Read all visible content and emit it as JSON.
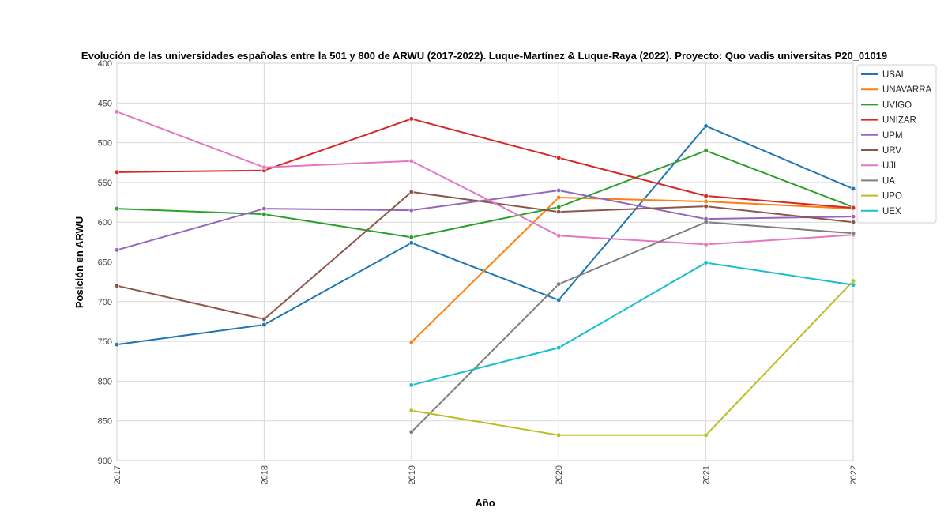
{
  "chart_data": {
    "type": "line",
    "title": "Evolución de las universidades españolas entre la 501 y 800 de ARWU (2017-2022). Luque-Martínez & Luque-Raya (2022). Proyecto: Quo vadis universitas P20_01019",
    "xlabel": "Año",
    "ylabel": "Posición en ARWU",
    "x": [
      "2017",
      "2018",
      "2019",
      "2020",
      "2021",
      "2022"
    ],
    "yticks": [
      "400",
      "450",
      "500",
      "550",
      "600",
      "650",
      "700",
      "750",
      "800",
      "850",
      "900"
    ],
    "ylim": [
      900,
      400
    ],
    "y_inverted": true,
    "grid": true,
    "legend_position": "top-right",
    "series": [
      {
        "name": "USAL",
        "color": "#1f77b4",
        "values": [
          754,
          729,
          626,
          698,
          479,
          558
        ]
      },
      {
        "name": "UNAVARRA",
        "color": "#ff7f0e",
        "values": [
          null,
          null,
          751,
          569,
          574,
          583
        ]
      },
      {
        "name": "UVIGO",
        "color": "#2ca02c",
        "values": [
          583,
          590,
          619,
          581,
          510,
          581
        ]
      },
      {
        "name": "UNIZAR",
        "color": "#d62728",
        "values": [
          537,
          535,
          470,
          519,
          567,
          582
        ]
      },
      {
        "name": "UPM",
        "color": "#9467bd",
        "values": [
          635,
          583,
          585,
          560,
          596,
          593
        ]
      },
      {
        "name": "URV",
        "color": "#8c564b",
        "values": [
          680,
          722,
          562,
          587,
          580,
          600
        ]
      },
      {
        "name": "UJI",
        "color": "#e377c2",
        "values": [
          461,
          531,
          523,
          617,
          628,
          616
        ]
      },
      {
        "name": "UA",
        "color": "#7f7f7f",
        "values": [
          null,
          null,
          864,
          678,
          600,
          614
        ]
      },
      {
        "name": "UPO",
        "color": "#bcbd22",
        "values": [
          null,
          null,
          837,
          868,
          868,
          674
        ]
      },
      {
        "name": "UEX",
        "color": "#17becf",
        "values": [
          null,
          null,
          805,
          758,
          651,
          679
        ]
      }
    ]
  }
}
